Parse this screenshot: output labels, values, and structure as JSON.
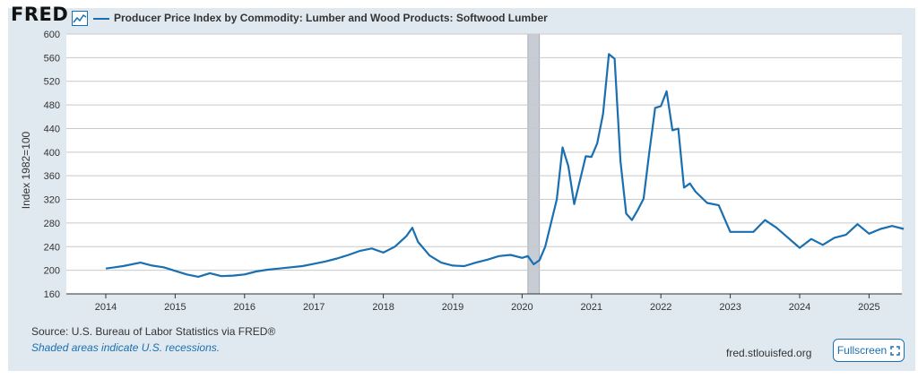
{
  "brand": {
    "logo_text": "FRED"
  },
  "colors": {
    "series": "#1a6fb0",
    "link": "#1a6fb0",
    "recession": "#c8ccd4",
    "panel": "#e1e9f0"
  },
  "chart_data": {
    "type": "line",
    "title": "Producer Price Index by Commodity: Lumber and Wood Products: Softwood Lumber",
    "ylabel": "Index 1982=100",
    "xlabel": "",
    "ylim": [
      160,
      600
    ],
    "yticks": [
      160,
      200,
      240,
      280,
      320,
      360,
      400,
      440,
      480,
      520,
      560,
      600
    ],
    "xticks": [
      "2014",
      "2015",
      "2016",
      "2017",
      "2018",
      "2019",
      "2020",
      "2021",
      "2022",
      "2023",
      "2024",
      "2025"
    ],
    "xrange": [
      "2013-01-01",
      "2025-07-01"
    ],
    "grid": true,
    "recessions": [
      {
        "start": "2020-02-01",
        "end": "2020-04-01"
      }
    ],
    "series": [
      {
        "name": "Producer Price Index by Commodity: Lumber and Wood Products: Softwood Lumber",
        "dates": [
          "2014-01",
          "2014-04",
          "2014-07",
          "2014-09",
          "2014-11",
          "2015-01",
          "2015-03",
          "2015-05",
          "2015-07",
          "2015-09",
          "2015-11",
          "2016-01",
          "2016-03",
          "2016-05",
          "2016-07",
          "2016-09",
          "2016-11",
          "2017-01",
          "2017-03",
          "2017-05",
          "2017-07",
          "2017-09",
          "2017-11",
          "2018-01",
          "2018-03",
          "2018-05",
          "2018-06",
          "2018-07",
          "2018-09",
          "2018-11",
          "2019-01",
          "2019-03",
          "2019-05",
          "2019-07",
          "2019-09",
          "2019-11",
          "2020-01",
          "2020-02",
          "2020-03",
          "2020-04",
          "2020-05",
          "2020-07",
          "2020-08",
          "2020-09",
          "2020-10",
          "2020-11",
          "2020-12",
          "2021-01",
          "2021-02",
          "2021-03",
          "2021-04",
          "2021-05",
          "2021-06",
          "2021-07",
          "2021-08",
          "2021-09",
          "2021-10",
          "2021-11",
          "2021-12",
          "2022-01",
          "2022-02",
          "2022-03",
          "2022-04",
          "2022-05",
          "2022-06",
          "2022-07",
          "2022-09",
          "2022-11",
          "2023-01",
          "2023-03",
          "2023-05",
          "2023-07",
          "2023-09",
          "2023-11",
          "2024-01",
          "2024-03",
          "2024-05",
          "2024-07",
          "2024-09",
          "2024-11",
          "2025-01",
          "2025-03",
          "2025-05",
          "2025-07"
        ],
        "values": [
          203,
          207,
          213,
          208,
          205,
          199,
          193,
          189,
          195,
          190,
          191,
          193,
          198,
          201,
          203,
          205,
          207,
          211,
          215,
          220,
          226,
          233,
          237,
          230,
          240,
          258,
          272,
          248,
          225,
          213,
          208,
          207,
          213,
          218,
          224,
          226,
          221,
          224,
          210,
          217,
          240,
          320,
          408,
          376,
          312,
          352,
          393,
          392,
          415,
          465,
          566,
          558,
          385,
          296,
          285,
          302,
          321,
          400,
          475,
          478,
          503,
          437,
          440,
          340,
          347,
          333,
          314,
          310,
          265,
          265,
          265,
          285,
          272,
          255,
          238,
          253,
          243,
          255,
          260,
          278,
          262,
          270,
          275,
          270
        ]
      }
    ]
  },
  "footer": {
    "source": "Source: U.S. Bureau of Labor Statistics via FRED®",
    "note": "Shaded areas indicate U.S. recessions.",
    "site": "fred.stlouisfed.org",
    "fullscreen": "Fullscreen"
  }
}
